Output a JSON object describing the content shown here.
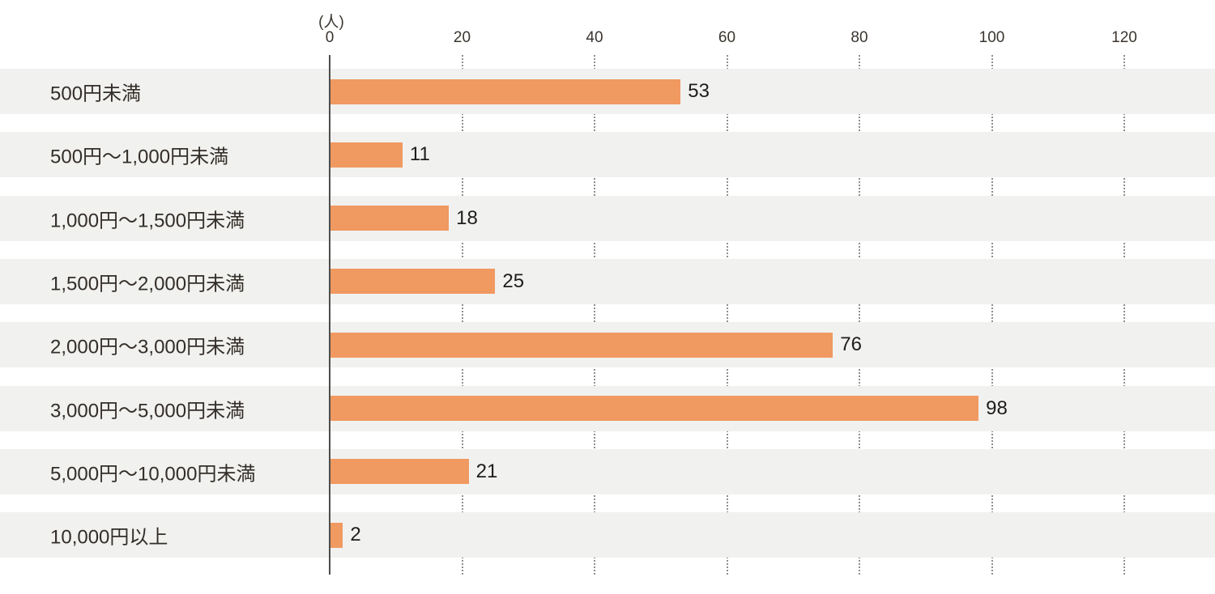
{
  "chart_data": {
    "type": "bar",
    "orientation": "horizontal",
    "title": "",
    "unit_label": "(人)",
    "categories": [
      "500円未満",
      "500円〜1,000円未満",
      "1,000円〜1,500円未満",
      "1,500円〜2,000円未満",
      "2,000円〜3,000円未満",
      "3,000円〜5,000円未満",
      "5,000円〜10,000円未満",
      "10,000円以上"
    ],
    "values": [
      53,
      11,
      18,
      25,
      76,
      98,
      21,
      2
    ],
    "value_labels": [
      "53",
      "11",
      "18",
      "25",
      "76",
      "98",
      "21",
      "2"
    ],
    "xlabel": "",
    "ylabel": "",
    "xlim": [
      0,
      133
    ],
    "x_ticks": [
      0,
      20,
      40,
      60,
      80,
      100,
      120
    ],
    "x_tick_labels": [
      "0",
      "20",
      "40",
      "60",
      "80",
      "100",
      "120"
    ],
    "grid": "dotted-vertical-behind-bands",
    "legend": "none",
    "colors": {
      "bar": "#f09961",
      "row_band": "#f1f1ef",
      "axis_line": "#4d4d4d",
      "gridline": "#8f8f8f",
      "text": "#332e29",
      "background": "#ffffff"
    }
  }
}
